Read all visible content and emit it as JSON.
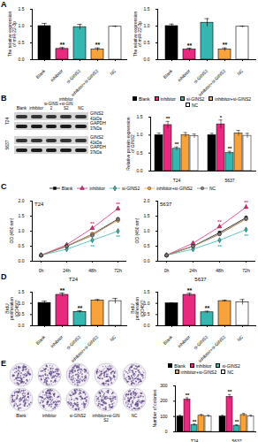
{
  "panel_labels": [
    "A",
    "B",
    "C",
    "D",
    "E"
  ],
  "blot": {
    "columns": [
      "Blank",
      "inhibitor",
      "si-GINS2",
      "inhibitor+si-GINS2",
      "NC"
    ],
    "cell_lines": [
      {
        "name": "T24",
        "rows": [
          {
            "protein": "GINS2",
            "size": "41kDa"
          },
          {
            "protein": "GAPDH",
            "size": "37kDa"
          }
        ]
      },
      {
        "name": "5637",
        "rows": [
          {
            "protein": "GINS2",
            "size": "41kDa"
          },
          {
            "protein": "GAPDH",
            "size": "37kDa"
          }
        ]
      }
    ]
  },
  "colony": {
    "columns": [
      "Blank",
      "inhibitor",
      "si-GINS2",
      "inhibitor+si-GINS2",
      "NC"
    ]
  },
  "chart_data": [
    {
      "type": "bar",
      "ylabel": "The relative expression of miR-22-3p",
      "categories": [
        "Blank",
        "inhibitor",
        "si-GINS2",
        "inhibitor+si-GINS2",
        "NC"
      ],
      "values": [
        1.0,
        0.32,
        0.97,
        0.3,
        0.98
      ],
      "errors": [
        0.08,
        0.04,
        0.08,
        0.05,
        0.02
      ],
      "annotations": [
        null,
        "**",
        null,
        "**",
        null
      ],
      "colors": [
        "#000000",
        "#e8297f",
        "#36b6b0",
        "#f7a23a",
        "#ffffff"
      ],
      "ylim": [
        0,
        1.5
      ],
      "yticks": [
        {
          "value": 0,
          "label": "0.0"
        },
        0.5,
        {
          "value": 1,
          "label": "1.0"
        },
        1.5
      ]
    },
    {
      "type": "bar",
      "ylabel": "The relative expression of miR-22-3p",
      "categories": [
        "Blank",
        "inhibitor",
        "si-GINS2",
        "inhibitor+si-GINS2",
        "NC"
      ],
      "values": [
        1.0,
        0.3,
        1.1,
        0.3,
        0.98
      ],
      "errors": [
        0.06,
        0.04,
        0.12,
        0.05,
        0.02
      ],
      "annotations": [
        null,
        "**",
        null,
        "**",
        null
      ],
      "colors": [
        "#000000",
        "#e8297f",
        "#36b6b0",
        "#f7a23a",
        "#ffffff"
      ],
      "ylim": [
        0,
        1.5
      ],
      "yticks": [
        {
          "value": 0,
          "label": "0.0"
        },
        0.5,
        {
          "value": 1,
          "label": "1.0"
        },
        1.5
      ]
    },
    {
      "type": "bar",
      "ylabel": "Relative protein expression of GINS2",
      "legend": "top",
      "categories": [
        "T24",
        "5637"
      ],
      "series": [
        {
          "name": "Blank",
          "color": "#000000",
          "values": [
            1.0,
            1.0
          ],
          "errors": [
            0.06,
            0.05
          ],
          "annotations": [
            null,
            null
          ]
        },
        {
          "name": "inhibitor",
          "color": "#e8297f",
          "values": [
            1.28,
            1.3
          ],
          "errors": [
            0.1,
            0.12
          ],
          "annotations": [
            "**",
            "*"
          ]
        },
        {
          "name": "si-GINS2",
          "color": "#36b6b0",
          "values": [
            0.62,
            0.5
          ],
          "errors": [
            0.05,
            0.05
          ],
          "annotations": [
            "**",
            "**"
          ]
        },
        {
          "name": "inhibitor+si-GINS2",
          "color": "#f7a23a",
          "values": [
            1.0,
            1.05
          ],
          "errors": [
            0.07,
            0.08
          ],
          "annotations": [
            null,
            null
          ]
        },
        {
          "name": "NC",
          "color": "#ffffff",
          "values": [
            0.97,
            0.98
          ],
          "errors": [
            0.06,
            0.07
          ],
          "annotations": [
            null,
            null
          ]
        }
      ],
      "ylim": [
        0,
        1.5
      ],
      "yticks": [
        {
          "value": 0,
          "label": "0.0"
        },
        0.5,
        {
          "value": 1,
          "label": "1.0"
        },
        1.5
      ]
    },
    {
      "type": "line",
      "title": "T24",
      "ylabel": "OD (450 nm)",
      "legend": "top",
      "categories": [
        "0h",
        "24h",
        "48h",
        "72h"
      ],
      "series": [
        {
          "name": "Blank",
          "color": "#000000",
          "marker": "square",
          "values": [
            0.2,
            0.5,
            0.9,
            1.4
          ],
          "errors": [
            0.02,
            0.03,
            0.05,
            0.06
          ],
          "annotations": [
            null,
            null,
            null,
            null
          ]
        },
        {
          "name": "inhibitor",
          "color": "#e8297f",
          "marker": "triangle",
          "values": [
            0.2,
            0.55,
            1.1,
            1.75
          ],
          "errors": [
            0.02,
            0.04,
            0.06,
            0.08
          ],
          "annotations": [
            null,
            null,
            "**",
            "**"
          ]
        },
        {
          "name": "si-GINS2",
          "color": "#36b6b0",
          "marker": "diamond",
          "values": [
            0.2,
            0.4,
            0.7,
            1.0
          ],
          "errors": [
            0.02,
            0.03,
            0.05,
            0.06
          ],
          "annotations": [
            null,
            null,
            "**",
            "**"
          ]
        },
        {
          "name": "inhibitor+si-GINS2",
          "color": "#f7a23a",
          "marker": "circle",
          "values": [
            0.2,
            0.5,
            0.9,
            1.35
          ],
          "errors": [
            0.02,
            0.03,
            0.05,
            0.06
          ],
          "annotations": [
            null,
            null,
            null,
            null
          ]
        },
        {
          "name": "NC",
          "color": "#808080",
          "marker": "circle",
          "values": [
            0.2,
            0.5,
            0.85,
            1.4
          ],
          "errors": [
            0.02,
            0.03,
            0.05,
            0.06
          ],
          "annotations": [
            null,
            null,
            null,
            null
          ]
        }
      ],
      "ylim": [
        0,
        2
      ],
      "yticks": [
        {
          "value": 0,
          "label": "0.0"
        },
        0.5,
        {
          "value": 1,
          "label": "1.0"
        },
        1.5,
        {
          "value": 2,
          "label": "2.0"
        }
      ]
    },
    {
      "type": "line",
      "title": "5637",
      "ylabel": "OD (450 nm)",
      "categories": [
        "0h",
        "24h",
        "48h",
        "72h"
      ],
      "series": [
        {
          "name": "Blank",
          "color": "#000000",
          "marker": "square",
          "values": [
            0.2,
            0.5,
            0.95,
            1.45
          ],
          "errors": [
            0.02,
            0.03,
            0.05,
            0.06
          ],
          "annotations": [
            null,
            null,
            null,
            null
          ]
        },
        {
          "name": "inhibitor",
          "color": "#e8297f",
          "marker": "triangle",
          "values": [
            0.2,
            0.6,
            1.15,
            1.8
          ],
          "errors": [
            0.02,
            0.04,
            0.06,
            0.08
          ],
          "annotations": [
            null,
            null,
            "**",
            "**"
          ]
        },
        {
          "name": "si-GINS2",
          "color": "#36b6b0",
          "marker": "diamond",
          "values": [
            0.2,
            0.4,
            0.7,
            1.05
          ],
          "errors": [
            0.02,
            0.03,
            0.05,
            0.06
          ],
          "annotations": [
            null,
            null,
            "**",
            "**"
          ]
        },
        {
          "name": "inhibitor+si-GINS2",
          "color": "#f7a23a",
          "marker": "circle",
          "values": [
            0.2,
            0.5,
            0.9,
            1.4
          ],
          "errors": [
            0.02,
            0.03,
            0.05,
            0.06
          ],
          "annotations": [
            null,
            null,
            null,
            null
          ]
        },
        {
          "name": "NC",
          "color": "#808080",
          "marker": "circle",
          "values": [
            0.2,
            0.5,
            0.9,
            1.42
          ],
          "errors": [
            0.02,
            0.03,
            0.05,
            0.06
          ],
          "annotations": [
            null,
            null,
            null,
            null
          ]
        }
      ],
      "ylim": [
        0,
        2
      ],
      "yticks": [
        {
          "value": 0,
          "label": "0.0"
        },
        0.5,
        {
          "value": 1,
          "label": "1.0"
        },
        1.5,
        {
          "value": 2,
          "label": "2.0"
        }
      ]
    },
    {
      "type": "bar",
      "title": "T24",
      "ylabel": "BrdU proliferation (OD450)",
      "categories": [
        "Blank",
        "inhibitor",
        "si-GINS2",
        "inhibitor+si-GINS2",
        "NC"
      ],
      "values": [
        1.02,
        1.38,
        0.62,
        1.12,
        1.1
      ],
      "errors": [
        0.08,
        0.08,
        0.05,
        0.05,
        0.12
      ],
      "annotations": [
        null,
        "**",
        "**",
        null,
        null
      ],
      "colors": [
        "#000000",
        "#e8297f",
        "#36b6b0",
        "#f7a23a",
        "#ffffff"
      ],
      "ylim": [
        0,
        1.5
      ],
      "yticks": [
        {
          "value": 0,
          "label": "0.0"
        },
        0.5,
        {
          "value": 1,
          "label": "1.0"
        },
        1.5
      ]
    },
    {
      "type": "bar",
      "title": "5637",
      "ylabel": "BrdU proliferation (OD450)",
      "categories": [
        "Blank",
        "inhibitor",
        "si-GINS2",
        "inhibitor+si-GINS2",
        "NC"
      ],
      "values": [
        1.0,
        1.38,
        0.6,
        1.1,
        1.05
      ],
      "errors": [
        0.02,
        0.07,
        0.05,
        0.04,
        0.12
      ],
      "annotations": [
        null,
        "**",
        "**",
        null,
        null
      ],
      "colors": [
        "#000000",
        "#e8297f",
        "#36b6b0",
        "#f7a23a",
        "#ffffff"
      ],
      "ylim": [
        0,
        1.5
      ],
      "yticks": [
        {
          "value": 0,
          "label": "0.0"
        },
        0.5,
        {
          "value": 1,
          "label": "1.0"
        },
        1.5
      ]
    },
    {
      "type": "bar",
      "ylabel": "Number of colonies",
      "legend": "top",
      "categories": [
        "T24",
        "5637"
      ],
      "series": [
        {
          "name": "Blank",
          "color": "#000000",
          "values": [
            100,
            100
          ],
          "errors": [
            8,
            8
          ],
          "annotations": [
            null,
            null
          ]
        },
        {
          "name": "inhibitor",
          "color": "#e8297f",
          "values": [
            210,
            228
          ],
          "errors": [
            12,
            15
          ],
          "annotations": [
            "**",
            "**"
          ]
        },
        {
          "name": "si-GINS2",
          "color": "#36b6b0",
          "values": [
            45,
            40
          ],
          "errors": [
            6,
            6
          ],
          "annotations": [
            "**",
            "**"
          ]
        },
        {
          "name": "inhibitor+si-GINS2",
          "color": "#f7a23a",
          "values": [
            105,
            110
          ],
          "errors": [
            8,
            10
          ],
          "annotations": [
            null,
            null
          ]
        },
        {
          "name": "NC",
          "color": "#ffffff",
          "values": [
            100,
            100
          ],
          "errors": [
            8,
            8
          ],
          "annotations": [
            null,
            null
          ]
        }
      ],
      "ylim": [
        0,
        300
      ],
      "yticks": [
        0,
        100,
        200,
        300
      ]
    }
  ]
}
